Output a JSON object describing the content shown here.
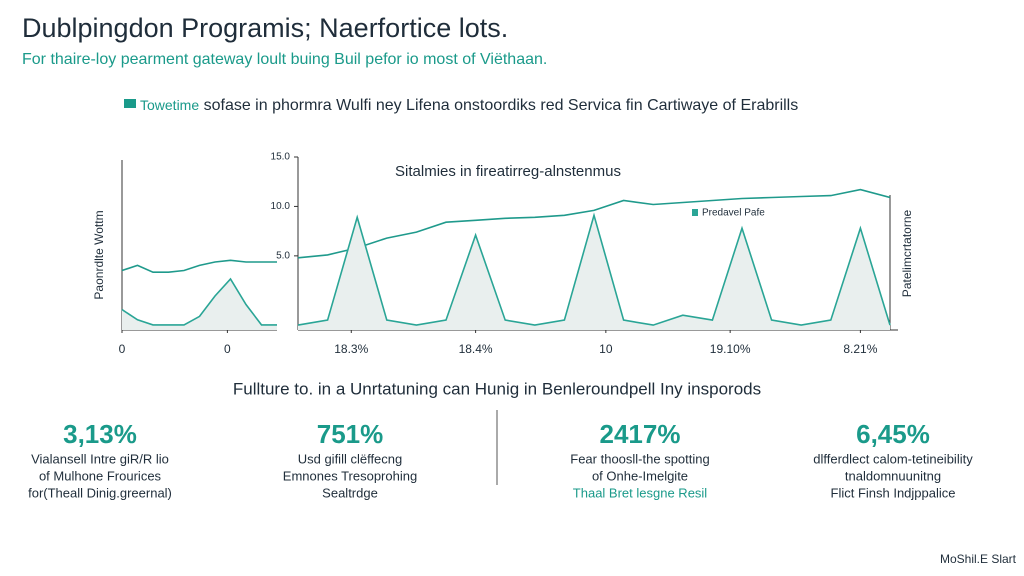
{
  "header": {
    "title": "Dublpingdon Programis; Naerfortice lots.",
    "subtitle": "For thaire-loy pearment gateway loult buing Buil pefor io most of Viëthaan."
  },
  "banner": {
    "highlight": "Towetime",
    "text": "sofase in phormra Wulfi ney Lifena onstoordiks red Servica fin Cartiwaye of Erabrills"
  },
  "chart_data": [
    {
      "type": "line",
      "ylabel": "Paonrdlte Wottm",
      "ylabel_position": "left",
      "x": [
        0,
        10,
        20,
        30,
        40,
        50,
        60,
        70,
        80,
        90,
        100
      ],
      "xlim": [
        0,
        100
      ],
      "xticks": [
        0,
        {
          "value": 68,
          "label": "0"
        }
      ],
      "ylim": [
        0,
        10
      ],
      "series": [
        {
          "color": "#1f9a8c",
          "area": false,
          "values": [
            3.5,
            3.8,
            3.4,
            3.4,
            3.5,
            3.8,
            4.0,
            4.1,
            4.0,
            4.0,
            4.0
          ]
        },
        {
          "color": "#2aa596",
          "area": true,
          "values": [
            1.2,
            0.6,
            0.3,
            0.3,
            0.3,
            0.8,
            2.0,
            3.0,
            1.5,
            0.3,
            0.3
          ]
        }
      ]
    },
    {
      "type": "line",
      "title": "Sitalmies in fireatirreg-alnstenmus",
      "ylabel": "Patelimcrtatorne",
      "ylabel_position": "right",
      "x": [
        0,
        5,
        10,
        15,
        20,
        25,
        30,
        35,
        40,
        45,
        50,
        55,
        60,
        65,
        70,
        75,
        80,
        85,
        90,
        95,
        100
      ],
      "xlim": [
        0,
        100
      ],
      "xticks": [
        {
          "value": 9,
          "label": "18.3%"
        },
        {
          "value": 30,
          "label": "18.4%"
        },
        {
          "value": 52,
          "label": "10"
        },
        {
          "value": 73,
          "label": "19.10%"
        },
        {
          "value": 95,
          "label": "8.21%"
        }
      ],
      "ylim": [
        -2.5,
        15
      ],
      "yticks": [
        {
          "value": 15,
          "label": "15.0"
        },
        {
          "value": 10,
          "label": "10.0"
        },
        {
          "value": 5,
          "label": "5.0"
        }
      ],
      "legend": "top-right",
      "series": [
        {
          "color": "#1f9a8c",
          "area": false,
          "values": [
            4.8,
            5.1,
            5.8,
            6.8,
            7.4,
            8.4,
            8.6,
            8.8,
            8.9,
            9.1,
            9.6,
            10.6,
            10.2,
            10.4,
            10.6,
            10.8,
            10.9,
            11.0,
            11.1,
            11.7,
            10.9
          ]
        },
        {
          "name": "Predavel Pafe",
          "color": "#2aa596",
          "area": true,
          "values": [
            -2,
            -1.5,
            8.9,
            -1.5,
            -2,
            -1.5,
            7.1,
            -1.5,
            -2,
            -1.5,
            9.1,
            -1.5,
            -2,
            -1,
            -1.5,
            7.8,
            -1.5,
            -2,
            -1.5,
            7.8,
            -2
          ]
        }
      ]
    }
  ],
  "section": {
    "title": "Fullture to. in a Unrtatuning can Hunig in Benleroundpell Iny insporods"
  },
  "stats": [
    {
      "value": "3,13%",
      "lines": [
        "Vialansell Intre giR/R lio",
        "of Mulhone Frourices",
        "for(Theall Dinig.greernal)"
      ]
    },
    {
      "value": "751%",
      "lines": [
        "Usd gifill clëffecng",
        "Emnones Tresoprohing",
        "Sealtrdge"
      ]
    },
    {
      "value": "2417%",
      "lines": [
        "Fear thoosll-the spotting",
        "of Onhe-Imelgite",
        "Thaal Bret lesgne Resil"
      ]
    },
    {
      "value": "6,45%",
      "lines": [
        "dlfferdlect calom-tetineibility",
        "tnaldomnuunitng",
        "Flict Finsh Indjppalice"
      ]
    }
  ],
  "footer": "MoShil.E Slart"
}
